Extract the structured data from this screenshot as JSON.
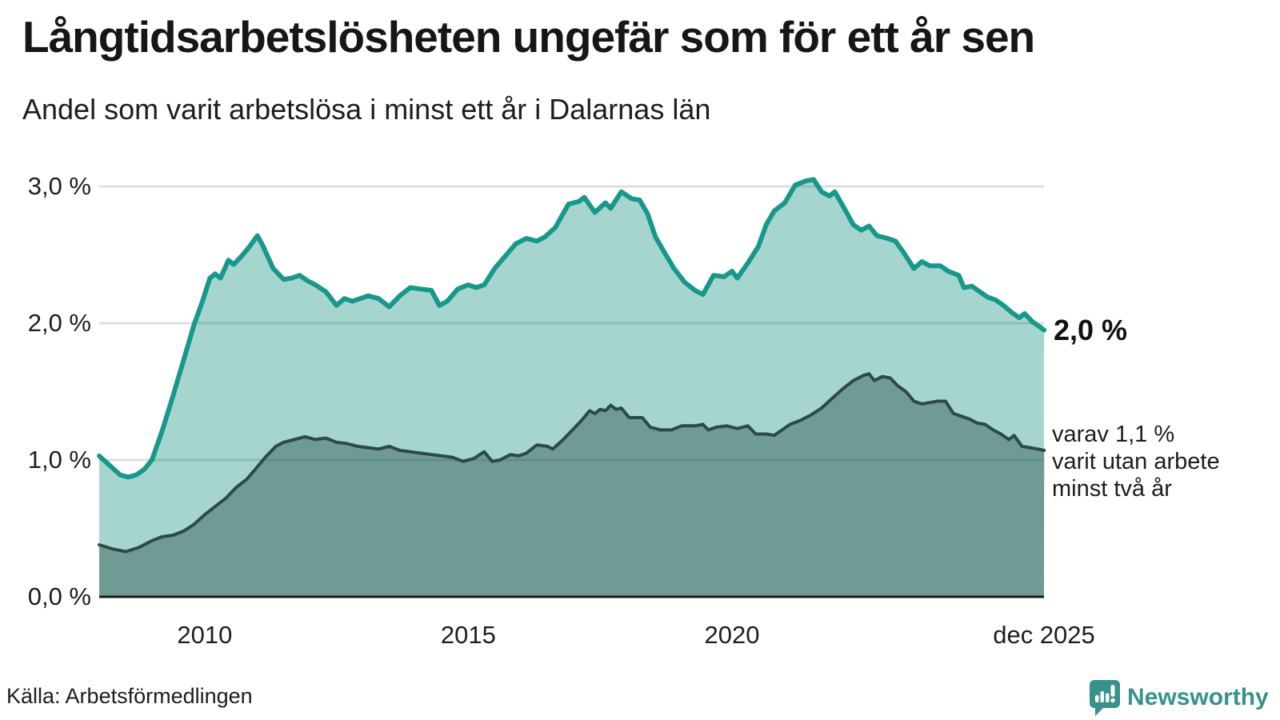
{
  "header": {
    "title": "Långtidsarbetslösheten ungefär som för ett år sen",
    "subtitle": "Andel som varit arbetslösa i minst ett år i Dalarnas län"
  },
  "footer": {
    "source": "Källa: Arbetsförmedlingen",
    "brand": "Newsworthy"
  },
  "colors": {
    "total_line": "#17988a",
    "total_fill": "#a6d5cf",
    "two_year_line": "#2d4a45",
    "two_year_fill": "#6f9b94",
    "axis_line": "#1a1a1a",
    "gridline": "rgba(45,65,60,0.16)",
    "text": "#1d1d1d",
    "brand_teal": "#36928b"
  },
  "chart_data": {
    "type": "area",
    "title": "Långtidsarbetslösheten ungefär som för ett år sen",
    "subtitle": "Andel som varit arbetslösa i minst ett år i Dalarnas län",
    "unit": "%",
    "grid": true,
    "legend_position": "direct-labels-at-line-end",
    "x_range": [
      2008.0,
      2025.917
    ],
    "ylim": [
      0,
      3.2
    ],
    "y_ticks": [
      {
        "label": "0,0 %",
        "value": 0
      },
      {
        "label": "1,0 %",
        "value": 1
      },
      {
        "label": "2,0 %",
        "value": 2
      },
      {
        "label": "3,0 %",
        "value": 3
      }
    ],
    "x_ticks": [
      {
        "label": "2010",
        "year": 2010
      },
      {
        "label": "2015",
        "year": 2015
      },
      {
        "label": "2020",
        "year": 2020
      },
      {
        "label": "dec 2025",
        "year": 2025.917
      }
    ],
    "end_labels": {
      "total": "2,0 %",
      "two_year": "varav 1,1 %\nvarit utan arbete\nminst två år"
    },
    "series": [
      {
        "name": "Andel arbetslösa minst ett år",
        "end_value_pct": 2.0,
        "points": [
          [
            2008.0,
            1.03
          ],
          [
            2008.2,
            0.96
          ],
          [
            2008.4,
            0.89
          ],
          [
            2008.55,
            0.875
          ],
          [
            2008.7,
            0.89
          ],
          [
            2008.85,
            0.93
          ],
          [
            2009.0,
            1.0
          ],
          [
            2009.2,
            1.22
          ],
          [
            2009.4,
            1.47
          ],
          [
            2009.6,
            1.73
          ],
          [
            2009.8,
            1.99
          ],
          [
            2009.95,
            2.15
          ],
          [
            2010.1,
            2.33
          ],
          [
            2010.2,
            2.36
          ],
          [
            2010.3,
            2.33
          ],
          [
            2010.45,
            2.46
          ],
          [
            2010.55,
            2.43
          ],
          [
            2010.7,
            2.49
          ],
          [
            2010.85,
            2.56
          ],
          [
            2011.0,
            2.64
          ],
          [
            2011.1,
            2.57
          ],
          [
            2011.3,
            2.4
          ],
          [
            2011.5,
            2.32
          ],
          [
            2011.65,
            2.33
          ],
          [
            2011.8,
            2.35
          ],
          [
            2011.95,
            2.31
          ],
          [
            2012.1,
            2.28
          ],
          [
            2012.3,
            2.23
          ],
          [
            2012.5,
            2.13
          ],
          [
            2012.65,
            2.18
          ],
          [
            2012.8,
            2.16
          ],
          [
            2012.95,
            2.18
          ],
          [
            2013.1,
            2.2
          ],
          [
            2013.3,
            2.18
          ],
          [
            2013.5,
            2.12
          ],
          [
            2013.7,
            2.2
          ],
          [
            2013.9,
            2.26
          ],
          [
            2014.1,
            2.25
          ],
          [
            2014.3,
            2.24
          ],
          [
            2014.45,
            2.13
          ],
          [
            2014.6,
            2.16
          ],
          [
            2014.8,
            2.25
          ],
          [
            2015.0,
            2.28
          ],
          [
            2015.15,
            2.26
          ],
          [
            2015.3,
            2.28
          ],
          [
            2015.5,
            2.4
          ],
          [
            2015.7,
            2.49
          ],
          [
            2015.9,
            2.58
          ],
          [
            2016.1,
            2.62
          ],
          [
            2016.3,
            2.6
          ],
          [
            2016.45,
            2.63
          ],
          [
            2016.65,
            2.7
          ],
          [
            2016.9,
            2.87
          ],
          [
            2017.1,
            2.89
          ],
          [
            2017.2,
            2.92
          ],
          [
            2017.4,
            2.81
          ],
          [
            2017.6,
            2.88
          ],
          [
            2017.7,
            2.84
          ],
          [
            2017.9,
            2.96
          ],
          [
            2018.1,
            2.91
          ],
          [
            2018.25,
            2.9
          ],
          [
            2018.4,
            2.8
          ],
          [
            2018.55,
            2.63
          ],
          [
            2018.7,
            2.53
          ],
          [
            2018.9,
            2.4
          ],
          [
            2019.1,
            2.3
          ],
          [
            2019.3,
            2.24
          ],
          [
            2019.45,
            2.21
          ],
          [
            2019.65,
            2.35
          ],
          [
            2019.85,
            2.34
          ],
          [
            2020.0,
            2.38
          ],
          [
            2020.1,
            2.33
          ],
          [
            2020.3,
            2.44
          ],
          [
            2020.5,
            2.56
          ],
          [
            2020.65,
            2.72
          ],
          [
            2020.8,
            2.82
          ],
          [
            2021.0,
            2.88
          ],
          [
            2021.2,
            3.01
          ],
          [
            2021.4,
            3.04
          ],
          [
            2021.55,
            3.05
          ],
          [
            2021.7,
            2.96
          ],
          [
            2021.85,
            2.93
          ],
          [
            2021.95,
            2.96
          ],
          [
            2022.1,
            2.86
          ],
          [
            2022.3,
            2.72
          ],
          [
            2022.45,
            2.68
          ],
          [
            2022.6,
            2.71
          ],
          [
            2022.75,
            2.64
          ],
          [
            2022.95,
            2.62
          ],
          [
            2023.1,
            2.6
          ],
          [
            2023.25,
            2.52
          ],
          [
            2023.45,
            2.4
          ],
          [
            2023.6,
            2.45
          ],
          [
            2023.75,
            2.42
          ],
          [
            2023.95,
            2.42
          ],
          [
            2024.1,
            2.38
          ],
          [
            2024.3,
            2.35
          ],
          [
            2024.4,
            2.26
          ],
          [
            2024.55,
            2.27
          ],
          [
            2024.7,
            2.23
          ],
          [
            2024.85,
            2.19
          ],
          [
            2025.0,
            2.17
          ],
          [
            2025.15,
            2.13
          ],
          [
            2025.3,
            2.08
          ],
          [
            2025.45,
            2.04
          ],
          [
            2025.55,
            2.07
          ],
          [
            2025.7,
            2.01
          ],
          [
            2025.85,
            1.97
          ],
          [
            2025.92,
            1.95
          ]
        ]
      },
      {
        "name": "varav arbetslösa minst två år",
        "end_value_pct": 1.1,
        "points": [
          [
            2008.0,
            0.38
          ],
          [
            2008.25,
            0.35
          ],
          [
            2008.5,
            0.33
          ],
          [
            2008.75,
            0.36
          ],
          [
            2009.0,
            0.41
          ],
          [
            2009.2,
            0.44
          ],
          [
            2009.4,
            0.45
          ],
          [
            2009.6,
            0.48
          ],
          [
            2009.8,
            0.53
          ],
          [
            2010.0,
            0.6
          ],
          [
            2010.2,
            0.66
          ],
          [
            2010.4,
            0.72
          ],
          [
            2010.6,
            0.8
          ],
          [
            2010.8,
            0.86
          ],
          [
            2011.0,
            0.95
          ],
          [
            2011.15,
            1.02
          ],
          [
            2011.35,
            1.1
          ],
          [
            2011.5,
            1.13
          ],
          [
            2011.7,
            1.15
          ],
          [
            2011.9,
            1.17
          ],
          [
            2012.1,
            1.15
          ],
          [
            2012.3,
            1.16
          ],
          [
            2012.5,
            1.13
          ],
          [
            2012.7,
            1.12
          ],
          [
            2012.9,
            1.1
          ],
          [
            2013.1,
            1.09
          ],
          [
            2013.3,
            1.08
          ],
          [
            2013.5,
            1.1
          ],
          [
            2013.7,
            1.07
          ],
          [
            2013.9,
            1.06
          ],
          [
            2014.1,
            1.05
          ],
          [
            2014.3,
            1.04
          ],
          [
            2014.5,
            1.03
          ],
          [
            2014.7,
            1.02
          ],
          [
            2014.9,
            0.99
          ],
          [
            2015.1,
            1.01
          ],
          [
            2015.3,
            1.06
          ],
          [
            2015.45,
            0.99
          ],
          [
            2015.6,
            1.0
          ],
          [
            2015.8,
            1.04
          ],
          [
            2015.95,
            1.03
          ],
          [
            2016.1,
            1.05
          ],
          [
            2016.3,
            1.11
          ],
          [
            2016.5,
            1.1
          ],
          [
            2016.6,
            1.08
          ],
          [
            2016.8,
            1.15
          ],
          [
            2017.0,
            1.23
          ],
          [
            2017.15,
            1.29
          ],
          [
            2017.3,
            1.36
          ],
          [
            2017.4,
            1.34
          ],
          [
            2017.5,
            1.37
          ],
          [
            2017.6,
            1.36
          ],
          [
            2017.7,
            1.4
          ],
          [
            2017.8,
            1.37
          ],
          [
            2017.9,
            1.38
          ],
          [
            2018.05,
            1.31
          ],
          [
            2018.3,
            1.31
          ],
          [
            2018.45,
            1.24
          ],
          [
            2018.65,
            1.22
          ],
          [
            2018.85,
            1.22
          ],
          [
            2019.05,
            1.25
          ],
          [
            2019.3,
            1.25
          ],
          [
            2019.45,
            1.26
          ],
          [
            2019.55,
            1.22
          ],
          [
            2019.7,
            1.24
          ],
          [
            2019.9,
            1.25
          ],
          [
            2020.1,
            1.23
          ],
          [
            2020.3,
            1.25
          ],
          [
            2020.45,
            1.19
          ],
          [
            2020.65,
            1.19
          ],
          [
            2020.8,
            1.18
          ],
          [
            2020.95,
            1.22
          ],
          [
            2021.1,
            1.26
          ],
          [
            2021.3,
            1.29
          ],
          [
            2021.5,
            1.33
          ],
          [
            2021.7,
            1.38
          ],
          [
            2021.9,
            1.45
          ],
          [
            2022.1,
            1.52
          ],
          [
            2022.3,
            1.58
          ],
          [
            2022.5,
            1.62
          ],
          [
            2022.6,
            1.63
          ],
          [
            2022.7,
            1.58
          ],
          [
            2022.85,
            1.61
          ],
          [
            2023.0,
            1.6
          ],
          [
            2023.15,
            1.54
          ],
          [
            2023.3,
            1.5
          ],
          [
            2023.45,
            1.43
          ],
          [
            2023.6,
            1.41
          ],
          [
            2023.75,
            1.42
          ],
          [
            2023.9,
            1.43
          ],
          [
            2024.05,
            1.43
          ],
          [
            2024.2,
            1.34
          ],
          [
            2024.35,
            1.32
          ],
          [
            2024.5,
            1.3
          ],
          [
            2024.65,
            1.27
          ],
          [
            2024.8,
            1.26
          ],
          [
            2024.95,
            1.22
          ],
          [
            2025.1,
            1.19
          ],
          [
            2025.25,
            1.15
          ],
          [
            2025.35,
            1.18
          ],
          [
            2025.5,
            1.1
          ],
          [
            2025.65,
            1.09
          ],
          [
            2025.8,
            1.08
          ],
          [
            2025.92,
            1.07
          ]
        ]
      }
    ]
  }
}
